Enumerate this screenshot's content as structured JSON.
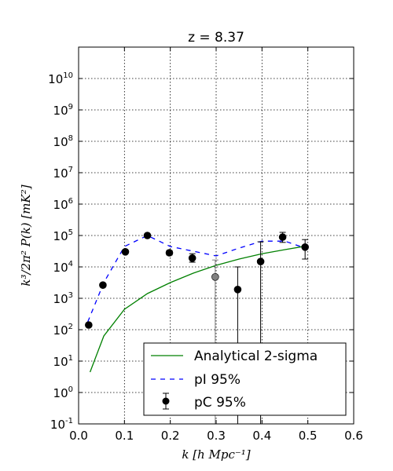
{
  "chart_data": {
    "type": "line",
    "title": "z = 8.37",
    "xlabel": "k [h Mpc⁻¹]",
    "ylabel": "k³/2π² P(k) [mK²]",
    "xlim": [
      0.0,
      0.6
    ],
    "ylim_log10": [
      -1,
      11
    ],
    "yscale": "log",
    "grid": true,
    "legend_position": "lower-right",
    "x_ticks": [
      "0.0",
      "0.1",
      "0.2",
      "0.3",
      "0.4",
      "0.5",
      "0.6"
    ],
    "y_tick_exponents": [
      -1,
      0,
      1,
      2,
      3,
      4,
      5,
      6,
      7,
      8,
      9,
      10
    ],
    "colors": {
      "analytical": "#008000",
      "pi": "#0000ff",
      "pc": "#000000",
      "pc_grey": "#808080"
    },
    "series": [
      {
        "name": "Analytical 2-sigma",
        "style": "solid",
        "x": [
          0.025,
          0.055,
          0.1,
          0.15,
          0.2,
          0.25,
          0.3,
          0.35,
          0.4,
          0.45,
          0.49
        ],
        "log10_y": [
          0.65,
          1.8,
          2.65,
          3.15,
          3.5,
          3.8,
          4.05,
          4.25,
          4.42,
          4.55,
          4.65
        ]
      },
      {
        "name": "pI 95%",
        "style": "dashed",
        "x": [
          0.02,
          0.055,
          0.1,
          0.15,
          0.2,
          0.25,
          0.3,
          0.35,
          0.4,
          0.45,
          0.49
        ],
        "log10_y": [
          2.25,
          3.5,
          4.65,
          5.0,
          4.65,
          4.5,
          4.35,
          4.6,
          4.82,
          4.82,
          4.62
        ]
      },
      {
        "name": "pC 95%",
        "style": "points",
        "points": [
          {
            "x": 0.022,
            "log10_y": 2.15,
            "log10_lo": 2.15,
            "log10_hi": 2.15,
            "grey": false
          },
          {
            "x": 0.053,
            "log10_y": 3.42,
            "log10_lo": 3.42,
            "log10_hi": 3.42,
            "grey": false
          },
          {
            "x": 0.102,
            "log10_y": 4.48,
            "log10_lo": 4.48,
            "log10_hi": 4.48,
            "grey": false
          },
          {
            "x": 0.15,
            "log10_y": 5.0,
            "log10_lo": 5.0,
            "log10_hi": 5.0,
            "grey": false
          },
          {
            "x": 0.198,
            "log10_y": 4.45,
            "log10_lo": 4.38,
            "log10_hi": 4.52,
            "grey": false
          },
          {
            "x": 0.248,
            "log10_y": 4.28,
            "log10_lo": 4.15,
            "log10_hi": 4.42,
            "grey": false
          },
          {
            "x": 0.298,
            "log10_y": 3.68,
            "log10_lo": -1.0,
            "log10_hi": 4.22,
            "grey": true
          },
          {
            "x": 0.347,
            "log10_y": 3.28,
            "log10_lo": -1.0,
            "log10_hi": 4.0,
            "grey": false
          },
          {
            "x": 0.397,
            "log10_y": 4.17,
            "log10_lo": -1.0,
            "log10_hi": 4.8,
            "grey": false
          },
          {
            "x": 0.445,
            "log10_y": 4.95,
            "log10_lo": 4.78,
            "log10_hi": 5.1,
            "grey": false
          },
          {
            "x": 0.494,
            "log10_y": 4.63,
            "log10_lo": 4.25,
            "log10_hi": 4.87,
            "grey": false
          }
        ]
      }
    ]
  }
}
